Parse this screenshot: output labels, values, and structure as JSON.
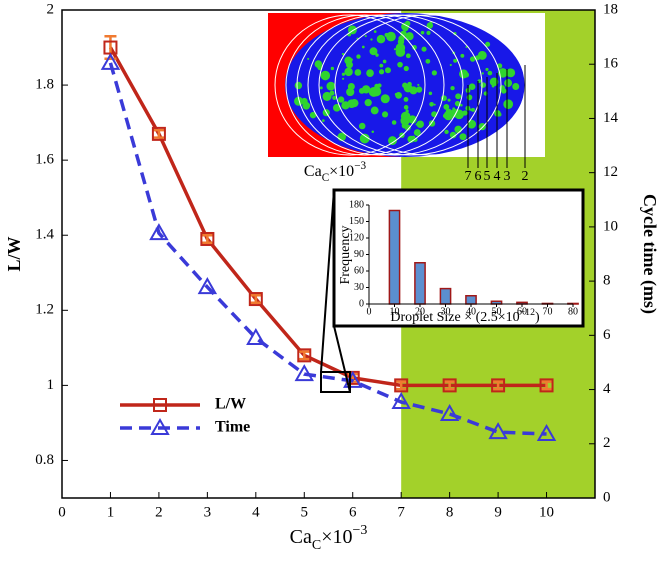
{
  "chart_data": [
    {
      "type": "line",
      "x_label": {
        "base": "Ca",
        "sub": "C",
        "mid": "×10",
        "sup": "−3"
      },
      "y_label": "L/W",
      "y2_label": "Cycle time (ms)",
      "x": [
        1,
        2,
        3,
        4,
        5,
        6,
        7,
        8,
        9,
        10
      ],
      "series": [
        {
          "name": "L/W",
          "color": "#c0261a",
          "marker_color": "#f07a30",
          "values": [
            1.9,
            1.67,
            1.39,
            1.23,
            1.08,
            1.02,
            1.0,
            1.0,
            1.0,
            1.0
          ],
          "errors": [
            0.03,
            0.01,
            0.01,
            0.01,
            0.01,
            0.01,
            0.01,
            0.01,
            0.01,
            0.01
          ]
        },
        {
          "name": "Time",
          "color": "#3a3ad8",
          "axis": "y2",
          "dashed": true,
          "values": [
            16.05,
            9.77,
            7.78,
            5.9,
            4.57,
            4.32,
            3.54,
            3.1,
            2.43,
            2.36
          ]
        }
      ],
      "xlim": [
        0,
        11
      ],
      "xticks": [
        0,
        1,
        2,
        3,
        4,
        5,
        6,
        7,
        8,
        9,
        10
      ],
      "ylim": [
        0.7,
        2
      ],
      "yticks": [
        0.8,
        1,
        1.2,
        1.4,
        1.6,
        1.8,
        2
      ],
      "y2lim": [
        0,
        18
      ],
      "y2ticks": [
        0,
        2,
        4,
        6,
        8,
        10,
        12,
        14,
        16,
        18
      ],
      "highlight_span": [
        7,
        11
      ],
      "highlight_color": "#a3d12a",
      "image_label": {
        "base": "Ca",
        "sub": "C",
        "mid": "×10",
        "sup": "−3"
      },
      "image_ticks": [
        "7",
        "6",
        "5",
        "4",
        "3",
        "2"
      ]
    },
    {
      "type": "bar",
      "color": "#5b8fd0",
      "edge_color": "#a01818",
      "x_label": {
        "base": "Droplet Size × (2.5×10",
        "sup": "−12",
        "end": ")"
      },
      "y_label": "Frequency",
      "x": [
        10,
        20,
        30,
        40,
        50,
        60,
        70,
        80
      ],
      "values": [
        170,
        75,
        28,
        15,
        5,
        3,
        1,
        1
      ],
      "xlim": [
        0,
        80
      ],
      "xticks": [
        0,
        10,
        20,
        30,
        40,
        50,
        60,
        70,
        80
      ],
      "ylim": [
        0,
        180
      ],
      "yticks": [
        0,
        30,
        60,
        90,
        120,
        150,
        180
      ]
    }
  ]
}
